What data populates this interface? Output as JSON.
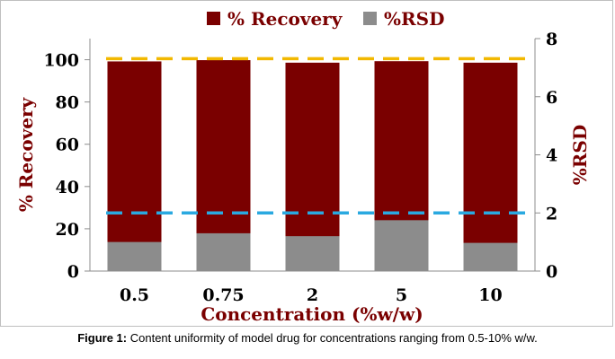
{
  "chart_data": {
    "type": "bar",
    "categories": [
      "0.5",
      "0.75",
      "2",
      "5",
      "10"
    ],
    "series": [
      {
        "name": "% Recovery",
        "axis": "left",
        "color": "#7a0000",
        "values": [
          99.2,
          99.8,
          98.6,
          99.3,
          98.6
        ]
      },
      {
        "name": "%RSD",
        "axis": "right",
        "color": "#8c8c8c",
        "values": [
          1.0,
          1.3,
          1.2,
          1.75,
          0.97
        ]
      }
    ],
    "reference_lines": [
      {
        "axis": "left",
        "value": 100.5,
        "color": "#f2b800"
      },
      {
        "axis": "right",
        "value": 2,
        "color": "#2aa9e0"
      }
    ],
    "xlabel": "Concentration (%w/w)",
    "ylabel": "% Recovery",
    "y2label": "%RSD",
    "ylim": [
      0,
      110
    ],
    "y2lim": [
      0,
      8
    ],
    "yticks": [
      0,
      20,
      40,
      60,
      80,
      100
    ],
    "y2ticks": [
      0,
      2,
      4,
      6,
      8
    ],
    "legend_position": "top",
    "grid": false
  },
  "caption": {
    "label": "Figure 1:",
    "text": "Content uniformity of  model drug for concentrations ranging from 0.5-10% w/w."
  }
}
